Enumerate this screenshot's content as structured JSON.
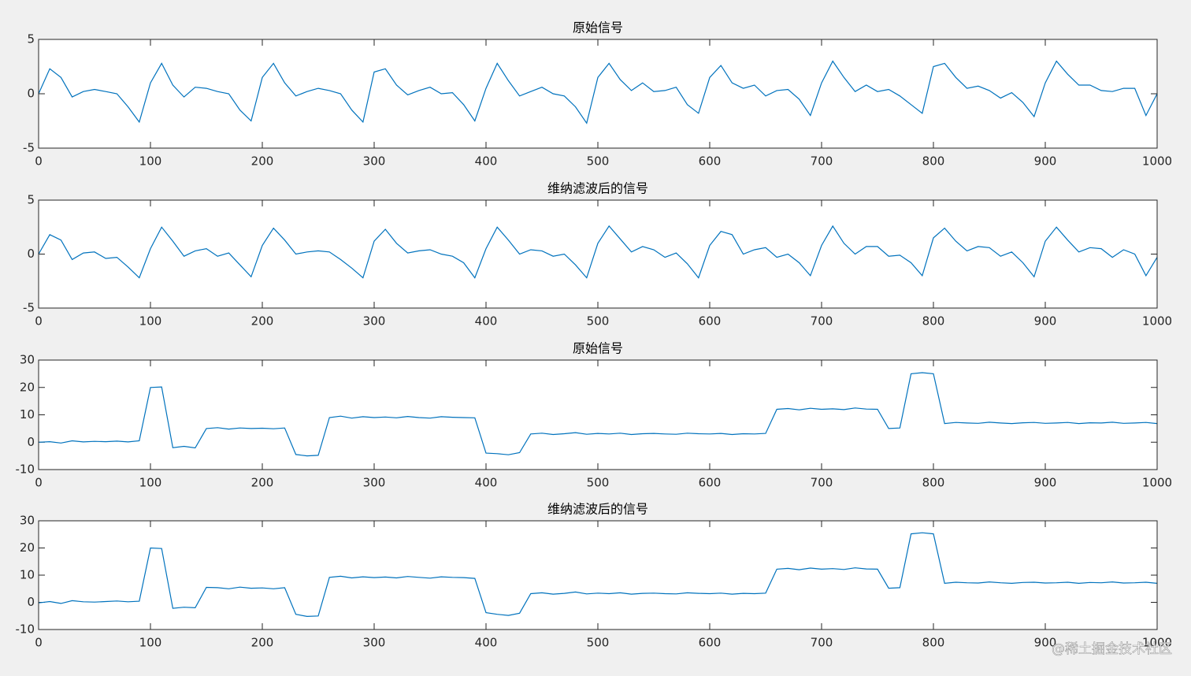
{
  "chart_data": [
    {
      "type": "line",
      "title": "原始信号",
      "color": "#0072bd",
      "x": [
        0,
        10,
        20,
        30,
        40,
        50,
        60,
        70,
        80,
        90,
        100,
        110,
        120,
        130,
        140,
        150,
        160,
        170,
        180,
        190,
        200,
        210,
        220,
        230,
        240,
        250,
        260,
        270,
        280,
        290,
        300,
        310,
        320,
        330,
        340,
        350,
        360,
        370,
        380,
        390,
        400,
        410,
        420,
        430,
        440,
        450,
        460,
        470,
        480,
        490,
        500,
        510,
        520,
        530,
        540,
        550,
        560,
        570,
        580,
        590,
        600,
        610,
        620,
        630,
        640,
        650,
        660,
        670,
        680,
        690,
        700,
        710,
        720,
        730,
        740,
        750,
        760,
        770,
        780,
        790,
        800,
        810,
        820,
        830,
        840,
        850,
        860,
        870,
        880,
        890,
        900,
        910,
        920,
        930,
        940,
        950,
        960,
        970,
        980,
        990,
        1000
      ],
      "values": [
        0,
        2.3,
        1.5,
        -0.3,
        0.2,
        0.4,
        0.2,
        0.0,
        -1.2,
        -2.6,
        1.0,
        2.8,
        0.8,
        -0.3,
        0.6,
        0.5,
        0.2,
        0.0,
        -1.5,
        -2.5,
        1.5,
        2.8,
        1.0,
        -0.2,
        0.2,
        0.5,
        0.3,
        0.0,
        -1.5,
        -2.6,
        2.0,
        2.3,
        0.8,
        -0.1,
        0.3,
        0.6,
        0.0,
        0.1,
        -1.0,
        -2.5,
        0.5,
        2.8,
        1.2,
        -0.2,
        0.2,
        0.6,
        0.0,
        -0.2,
        -1.2,
        -2.7,
        1.5,
        2.8,
        1.3,
        0.3,
        1.0,
        0.2,
        0.3,
        0.6,
        -1.0,
        -1.8,
        1.5,
        2.6,
        1.0,
        0.5,
        0.8,
        -0.2,
        0.3,
        0.4,
        -0.5,
        -2.0,
        1.0,
        3.0,
        1.5,
        0.2,
        0.8,
        0.2,
        0.4,
        -0.2,
        -1.0,
        -1.8,
        2.5,
        2.8,
        1.5,
        0.5,
        0.7,
        0.3,
        -0.4,
        0.1,
        -0.8,
        -2.1,
        1.0,
        3.0,
        1.8,
        0.8,
        0.8,
        0.3,
        0.2,
        0.5,
        0.5,
        -2.0,
        0.0
      ],
      "xlim": [
        0,
        1000
      ],
      "xticks": [
        0,
        100,
        200,
        300,
        400,
        500,
        600,
        700,
        800,
        900,
        1000
      ],
      "ylim": [
        -5,
        5
      ],
      "yticks": [
        -5,
        0,
        5
      ]
    },
    {
      "type": "line",
      "title": "维纳滤波后的信号",
      "color": "#0072bd",
      "x": [
        0,
        10,
        20,
        30,
        40,
        50,
        60,
        70,
        80,
        90,
        100,
        110,
        120,
        130,
        140,
        150,
        160,
        170,
        180,
        190,
        200,
        210,
        220,
        230,
        240,
        250,
        260,
        270,
        280,
        290,
        300,
        310,
        320,
        330,
        340,
        350,
        360,
        370,
        380,
        390,
        400,
        410,
        420,
        430,
        440,
        450,
        460,
        470,
        480,
        490,
        500,
        510,
        520,
        530,
        540,
        550,
        560,
        570,
        580,
        590,
        600,
        610,
        620,
        630,
        640,
        650,
        660,
        670,
        680,
        690,
        700,
        710,
        720,
        730,
        740,
        750,
        760,
        770,
        780,
        790,
        800,
        810,
        820,
        830,
        840,
        850,
        860,
        870,
        880,
        890,
        900,
        910,
        920,
        930,
        940,
        950,
        960,
        970,
        980,
        990,
        1000
      ],
      "values": [
        0,
        1.8,
        1.3,
        -0.5,
        0.1,
        0.2,
        -0.4,
        -0.3,
        -1.2,
        -2.2,
        0.5,
        2.5,
        1.2,
        -0.2,
        0.3,
        0.5,
        -0.2,
        0.1,
        -1.0,
        -2.1,
        0.8,
        2.4,
        1.3,
        0.0,
        0.2,
        0.3,
        0.2,
        -0.5,
        -1.3,
        -2.2,
        1.2,
        2.3,
        1.0,
        0.1,
        0.3,
        0.4,
        0.0,
        -0.2,
        -0.8,
        -2.2,
        0.5,
        2.5,
        1.3,
        0.0,
        0.4,
        0.3,
        -0.2,
        0.0,
        -1.0,
        -2.2,
        1.0,
        2.6,
        1.4,
        0.2,
        0.7,
        0.4,
        -0.3,
        0.1,
        -0.9,
        -2.2,
        0.8,
        2.1,
        1.8,
        0.0,
        0.4,
        0.6,
        -0.3,
        0.0,
        -0.8,
        -2.0,
        0.8,
        2.6,
        1.0,
        0.0,
        0.7,
        0.7,
        -0.2,
        -0.1,
        -0.8,
        -2.0,
        1.5,
        2.4,
        1.2,
        0.3,
        0.7,
        0.6,
        -0.2,
        0.2,
        -0.8,
        -2.1,
        1.2,
        2.5,
        1.3,
        0.2,
        0.6,
        0.5,
        -0.3,
        0.4,
        0.0,
        -2.0,
        -0.3
      ],
      "xlim": [
        0,
        1000
      ],
      "xticks": [
        0,
        100,
        200,
        300,
        400,
        500,
        600,
        700,
        800,
        900,
        1000
      ],
      "ylim": [
        -5,
        5
      ],
      "yticks": [
        -5,
        0,
        5
      ]
    },
    {
      "type": "line",
      "title": "原始信号",
      "color": "#0072bd",
      "x": [
        0,
        10,
        20,
        30,
        40,
        50,
        60,
        70,
        80,
        90,
        100,
        110,
        120,
        130,
        140,
        150,
        160,
        170,
        180,
        190,
        200,
        210,
        220,
        230,
        240,
        250,
        260,
        270,
        280,
        290,
        300,
        310,
        320,
        330,
        340,
        350,
        360,
        370,
        380,
        390,
        400,
        410,
        420,
        430,
        440,
        450,
        460,
        470,
        480,
        490,
        500,
        510,
        520,
        530,
        540,
        550,
        560,
        570,
        580,
        590,
        600,
        610,
        620,
        630,
        640,
        650,
        660,
        670,
        680,
        690,
        700,
        710,
        720,
        730,
        740,
        750,
        760,
        770,
        780,
        790,
        800,
        810,
        820,
        830,
        840,
        850,
        860,
        870,
        880,
        890,
        900,
        910,
        920,
        930,
        940,
        950,
        960,
        970,
        980,
        990,
        1000
      ],
      "values": [
        0,
        0.2,
        -0.3,
        0.5,
        0.1,
        0.3,
        0.2,
        0.4,
        0.1,
        0.5,
        20,
        20.2,
        -2,
        -1.5,
        -2.1,
        5,
        5.3,
        4.8,
        5.2,
        5,
        5.1,
        4.9,
        5.2,
        -4.5,
        -5,
        -4.8,
        9,
        9.5,
        8.8,
        9.3,
        9,
        9.2,
        8.9,
        9.4,
        9,
        8.8,
        9.3,
        9.1,
        9,
        8.9,
        -4,
        -4.2,
        -4.6,
        -3.8,
        3,
        3.3,
        2.8,
        3.1,
        3.5,
        2.9,
        3.2,
        3,
        3.3,
        2.8,
        3.1,
        3.2,
        3,
        2.9,
        3.3,
        3.1,
        3,
        3.2,
        2.8,
        3.1,
        3,
        3.2,
        12,
        12.3,
        11.8,
        12.4,
        12,
        12.2,
        11.9,
        12.5,
        12.1,
        12,
        5,
        5.2,
        25,
        25.4,
        25,
        6.8,
        7.2,
        7,
        6.9,
        7.3,
        7,
        6.8,
        7.1,
        7.2,
        6.9,
        7,
        7.2,
        6.8,
        7.1,
        7,
        7.3,
        6.9,
        7,
        7.2,
        6.8
      ],
      "xlim": [
        0,
        1000
      ],
      "xticks": [
        0,
        100,
        200,
        300,
        400,
        500,
        600,
        700,
        800,
        900,
        1000
      ],
      "ylim": [
        -10,
        30
      ],
      "yticks": [
        -10,
        0,
        10,
        20,
        30
      ]
    },
    {
      "type": "line",
      "title": "维纳滤波后的信号",
      "color": "#0072bd",
      "x": [
        0,
        10,
        20,
        30,
        40,
        50,
        60,
        70,
        80,
        90,
        100,
        110,
        120,
        130,
        140,
        150,
        160,
        170,
        180,
        190,
        200,
        210,
        220,
        230,
        240,
        250,
        260,
        270,
        280,
        290,
        300,
        310,
        320,
        330,
        340,
        350,
        360,
        370,
        380,
        390,
        400,
        410,
        420,
        430,
        440,
        450,
        460,
        470,
        480,
        490,
        500,
        510,
        520,
        530,
        540,
        550,
        560,
        570,
        580,
        590,
        600,
        610,
        620,
        630,
        640,
        650,
        660,
        670,
        680,
        690,
        700,
        710,
        720,
        730,
        740,
        750,
        760,
        770,
        780,
        790,
        800,
        810,
        820,
        830,
        840,
        850,
        860,
        870,
        880,
        890,
        900,
        910,
        920,
        930,
        940,
        950,
        960,
        970,
        980,
        990,
        1000
      ],
      "values": [
        -0.2,
        0.3,
        -0.4,
        0.6,
        0.2,
        0.1,
        0.3,
        0.5,
        0.2,
        0.4,
        20,
        19.8,
        -2.2,
        -1.8,
        -2,
        5.5,
        5.4,
        5,
        5.6,
        5.2,
        5.3,
        5,
        5.4,
        -4.4,
        -5.2,
        -5,
        9.2,
        9.6,
        9,
        9.4,
        9.1,
        9.3,
        9,
        9.5,
        9.2,
        8.9,
        9.4,
        9.2,
        9.1,
        8.8,
        -3.8,
        -4.4,
        -4.8,
        -4,
        3.2,
        3.5,
        3,
        3.3,
        3.8,
        3.1,
        3.4,
        3.2,
        3.5,
        3,
        3.3,
        3.4,
        3.2,
        3.1,
        3.5,
        3.3,
        3.2,
        3.4,
        3,
        3.3,
        3.2,
        3.4,
        12.2,
        12.5,
        12,
        12.6,
        12.2,
        12.4,
        12.1,
        12.7,
        12.3,
        12.2,
        5.2,
        5.4,
        25.2,
        25.6,
        25.2,
        7,
        7.4,
        7.2,
        7.1,
        7.5,
        7.2,
        7,
        7.3,
        7.4,
        7.1,
        7.2,
        7.4,
        7,
        7.3,
        7.2,
        7.5,
        7.1,
        7.2,
        7.4,
        7
      ],
      "xlim": [
        0,
        1000
      ],
      "xticks": [
        0,
        100,
        200,
        300,
        400,
        500,
        600,
        700,
        800,
        900,
        1000
      ],
      "ylim": [
        -10,
        30
      ],
      "yticks": [
        -10,
        0,
        10,
        20,
        30
      ]
    }
  ],
  "watermark": "@稀土掘金技术社区"
}
